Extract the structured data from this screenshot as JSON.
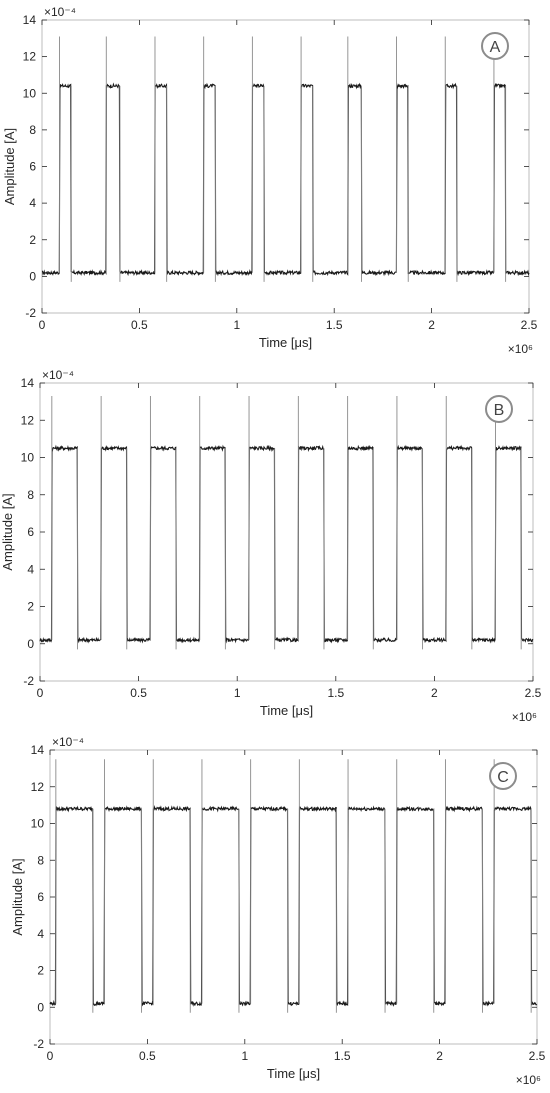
{
  "chart_data": [
    {
      "type": "line",
      "panel_label": "A",
      "xlabel": "Time [μs]",
      "ylabel": "Amplitude [A]",
      "x_exponent": "×10⁶",
      "y_exponent": "×10⁻⁴",
      "xlim": [
        0,
        2.5
      ],
      "ylim": [
        -2,
        14
      ],
      "xticks": [
        "0",
        "0.5",
        "1",
        "1.5",
        "2",
        "2.5"
      ],
      "yticks": [
        "-2",
        "0",
        "2",
        "4",
        "6",
        "8",
        "10",
        "12",
        "14"
      ],
      "grid": false,
      "high_level": 10.4,
      "low_level": 0.2,
      "spike_peak": 13.1,
      "pulses": [
        [
          0.09,
          0.15
        ],
        [
          0.33,
          0.4
        ],
        [
          0.58,
          0.64
        ],
        [
          0.83,
          0.89
        ],
        [
          1.08,
          1.14
        ],
        [
          1.33,
          1.39
        ],
        [
          1.57,
          1.64
        ],
        [
          1.82,
          1.88
        ],
        [
          2.07,
          2.13
        ],
        [
          2.32,
          2.38
        ]
      ]
    },
    {
      "type": "line",
      "panel_label": "B",
      "xlabel": "Time [μs]",
      "ylabel": "Amplitude [A]",
      "x_exponent": "×10⁶",
      "y_exponent": "×10⁻⁴",
      "xlim": [
        0,
        2.5
      ],
      "ylim": [
        -2,
        14
      ],
      "xticks": [
        "0",
        "0.5",
        "1",
        "1.5",
        "2",
        "2.5"
      ],
      "yticks": [
        "-2",
        "0",
        "2",
        "4",
        "6",
        "8",
        "10",
        "12",
        "14"
      ],
      "grid": false,
      "high_level": 10.5,
      "low_level": 0.2,
      "spike_peak": 13.3,
      "pulses": [
        [
          0.06,
          0.19
        ],
        [
          0.31,
          0.44
        ],
        [
          0.56,
          0.69
        ],
        [
          0.81,
          0.94
        ],
        [
          1.06,
          1.19
        ],
        [
          1.31,
          1.44
        ],
        [
          1.56,
          1.69
        ],
        [
          1.81,
          1.94
        ],
        [
          2.06,
          2.19
        ],
        [
          2.31,
          2.44
        ]
      ]
    },
    {
      "type": "line",
      "panel_label": "C",
      "xlabel": "Time [μs]",
      "ylabel": "Amplitude [A]",
      "x_exponent": "×10⁶",
      "y_exponent": "×10⁻⁴",
      "xlim": [
        0,
        2.5
      ],
      "ylim": [
        -2,
        14
      ],
      "xticks": [
        "0",
        "0.5",
        "1",
        "1.5",
        "2",
        "2.5"
      ],
      "yticks": [
        "-2",
        "0",
        "2",
        "4",
        "6",
        "8",
        "10",
        "12",
        "14"
      ],
      "grid": false,
      "high_level": 10.8,
      "low_level": 0.2,
      "spike_peak": 13.5,
      "pulses": [
        [
          0.03,
          0.22
        ],
        [
          0.28,
          0.47
        ],
        [
          0.53,
          0.72
        ],
        [
          0.78,
          0.97
        ],
        [
          1.03,
          1.22
        ],
        [
          1.28,
          1.47
        ],
        [
          1.53,
          1.72
        ],
        [
          1.78,
          1.97
        ],
        [
          2.03,
          2.22
        ],
        [
          2.28,
          2.47
        ]
      ]
    }
  ]
}
